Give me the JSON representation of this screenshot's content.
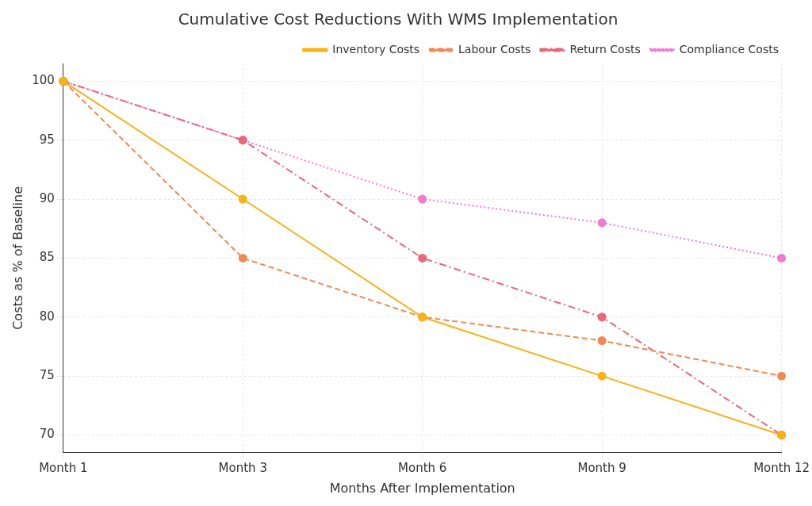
{
  "chart_data": {
    "type": "line",
    "title": "Cumulative Cost Reductions With WMS Implementation",
    "x_label": "Months After Implementation",
    "y_label": "Costs as % of Baseline",
    "categories": [
      "Month 1",
      "Month 3",
      "Month 6",
      "Month 9",
      "Month 12"
    ],
    "series": [
      {
        "name": "Inventory Costs",
        "color": "#f9b115",
        "line_style": "solid",
        "marker": "circle",
        "values": [
          100,
          90,
          80,
          75,
          70
        ]
      },
      {
        "name": "Labour Costs",
        "color": "#ef8a55",
        "line_style": "dashed",
        "marker": "circle",
        "values": [
          100,
          85,
          80,
          78,
          75
        ]
      },
      {
        "name": "Return Costs",
        "color": "#e8677a",
        "line_style": "dashdot",
        "marker": "circle",
        "values": [
          100,
          95,
          85,
          80,
          70
        ]
      },
      {
        "name": "Compliance Costs",
        "color": "#f07ad0",
        "line_style": "dotted",
        "marker": "circle",
        "values": [
          100,
          95,
          90,
          88,
          85
        ]
      }
    ],
    "ylim": [
      68.5,
      101.5
    ],
    "yticks": [
      70,
      75,
      80,
      85,
      90,
      95,
      100
    ],
    "grid": true,
    "legend": "upper right"
  }
}
